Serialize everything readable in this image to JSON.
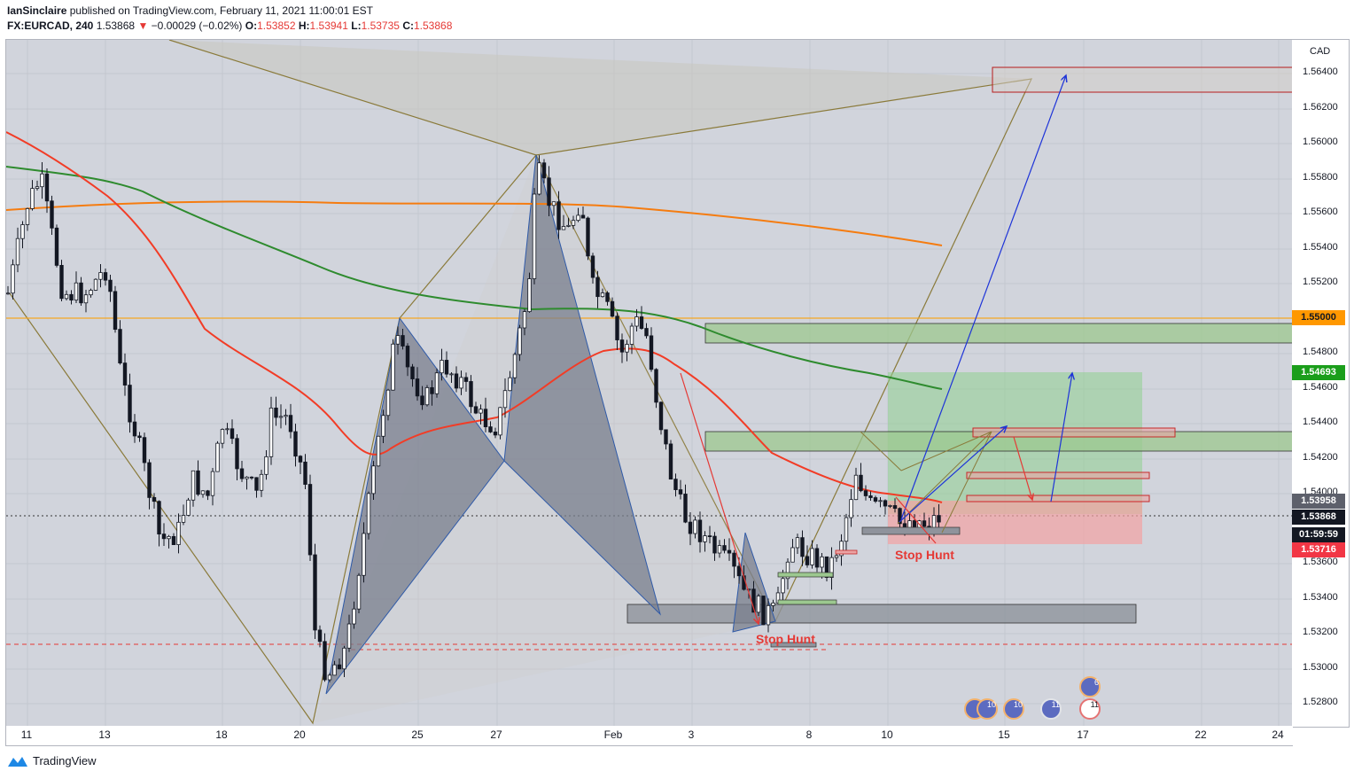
{
  "header": {
    "author": "IanSinclaire",
    "published_text": "published on TradingView.com, February 11, 2021 11:00:01 EST",
    "symbol": "FX:EURCAD, 240",
    "last": "1.53868",
    "change_arrow": "▼",
    "change": "−0.00029 (−0.02%)",
    "o_label": "O:",
    "o_value": "1.53852",
    "h_label": "H:",
    "h_value": "1.53941",
    "l_label": "L:",
    "l_value": "1.53735",
    "c_label": "C:",
    "c_value": "1.53868"
  },
  "axis": {
    "currency": "CAD",
    "price_ticks": [
      "1.56400",
      "1.56200",
      "1.56000",
      "1.55800",
      "1.55600",
      "1.55400",
      "1.55200",
      "1.54800",
      "1.54600",
      "1.54400",
      "1.54200",
      "1.54000",
      "1.53600",
      "1.53400",
      "1.53200",
      "1.53000",
      "1.52800"
    ],
    "date_ticks": [
      "11",
      "13",
      "18",
      "20",
      "25",
      "27",
      "Feb",
      "3",
      "8",
      "10",
      "15",
      "17",
      "22",
      "24"
    ]
  },
  "price_tags": {
    "level_1": "1.55000",
    "level_2": "1.54693",
    "level_3": "1.53958",
    "last": "1.53868",
    "countdown": "01:59:59",
    "low": "1.53716"
  },
  "annotations": {
    "stop_hunt_1": "Stop Hunt",
    "stop_hunt_2": "Stop Hunt"
  },
  "events": [
    "5",
    "10",
    "10",
    "11",
    "6",
    "11"
  ],
  "footer": {
    "brand": "TradingView"
  },
  "colors": {
    "background": "#d1d4dc",
    "ma_red": "#f23c26",
    "ma_green": "#2e8b2e",
    "ma_orange": "#f57c10",
    "pattern_line": "#8a7a3a",
    "harmonic_fill": "#7a7f8e",
    "harmonic_stroke": "#2f5aa8",
    "target_green": "#4caf50",
    "stop_red": "#ef9a9a",
    "arrow_blue": "#1e34d8"
  }
}
